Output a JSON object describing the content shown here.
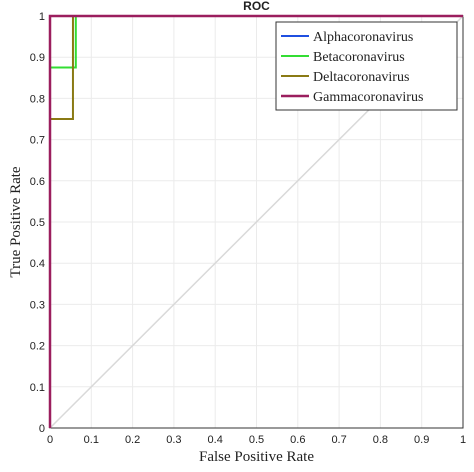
{
  "chart_data": {
    "type": "line",
    "title": "ROC",
    "xlabel": "False Positive Rate",
    "ylabel": "True Positive Rate",
    "xlim": [
      0,
      1
    ],
    "ylim": [
      0,
      1
    ],
    "xticks": [
      "0",
      "0.1",
      "0.2",
      "0.3",
      "0.4",
      "0.5",
      "0.6",
      "0.7",
      "0.8",
      "0.9",
      "1"
    ],
    "yticks": [
      "0",
      "0.1",
      "0.2",
      "0.3",
      "0.4",
      "0.5",
      "0.6",
      "0.7",
      "0.8",
      "0.9",
      "1"
    ],
    "grid": true,
    "legend_position": "top-right",
    "reference_line": {
      "x": [
        0,
        1
      ],
      "y": [
        0,
        1
      ],
      "color": "#d9d9d9"
    },
    "series": [
      {
        "name": "Alphacoronavirus",
        "color": "#1f4fe0",
        "x": [
          0,
          0,
          1
        ],
        "y": [
          0,
          1,
          1
        ]
      },
      {
        "name": "Betacoronavirus",
        "color": "#33dd33",
        "x": [
          0,
          0,
          0.0625,
          0.0625,
          1
        ],
        "y": [
          0,
          0.875,
          0.875,
          1,
          1
        ]
      },
      {
        "name": "Deltacoronavirus",
        "color": "#8a7a14",
        "x": [
          0,
          0,
          0.0556,
          0.0556,
          1
        ],
        "y": [
          0,
          0.75,
          0.75,
          1,
          1
        ]
      },
      {
        "name": "Gammacoronavirus",
        "color": "#9b1e5e",
        "x": [
          0,
          0,
          1
        ],
        "y": [
          0,
          1,
          1
        ]
      }
    ]
  }
}
